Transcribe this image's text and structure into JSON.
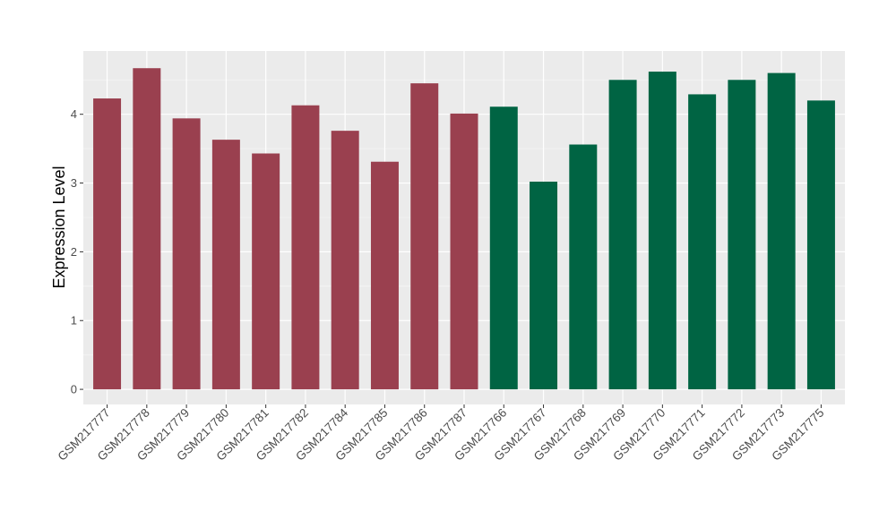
{
  "chart_data": {
    "type": "bar",
    "title": "",
    "xlabel": "",
    "ylabel": "Expression Level",
    "ylim": [
      -0.22,
      4.92
    ],
    "yticks": [
      0,
      1,
      2,
      3,
      4
    ],
    "grid": true,
    "legend": "none",
    "categories": [
      "GSM217777",
      "GSM217778",
      "GSM217779",
      "GSM217780",
      "GSM217781",
      "GSM217782",
      "GSM217784",
      "GSM217785",
      "GSM217786",
      "GSM217787",
      "GSM217766",
      "GSM217767",
      "GSM217768",
      "GSM217769",
      "GSM217770",
      "GSM217771",
      "GSM217772",
      "GSM217773",
      "GSM217775"
    ],
    "values": [
      4.23,
      4.67,
      3.94,
      3.63,
      3.43,
      4.13,
      3.76,
      3.31,
      4.45,
      4.01,
      4.11,
      3.02,
      3.56,
      4.5,
      4.62,
      4.29,
      4.5,
      4.6,
      4.2
    ],
    "groups": [
      0,
      0,
      0,
      0,
      0,
      0,
      0,
      0,
      0,
      0,
      1,
      1,
      1,
      1,
      1,
      1,
      1,
      1,
      1
    ],
    "group_colors": [
      "#9a404f",
      "#006443"
    ]
  }
}
